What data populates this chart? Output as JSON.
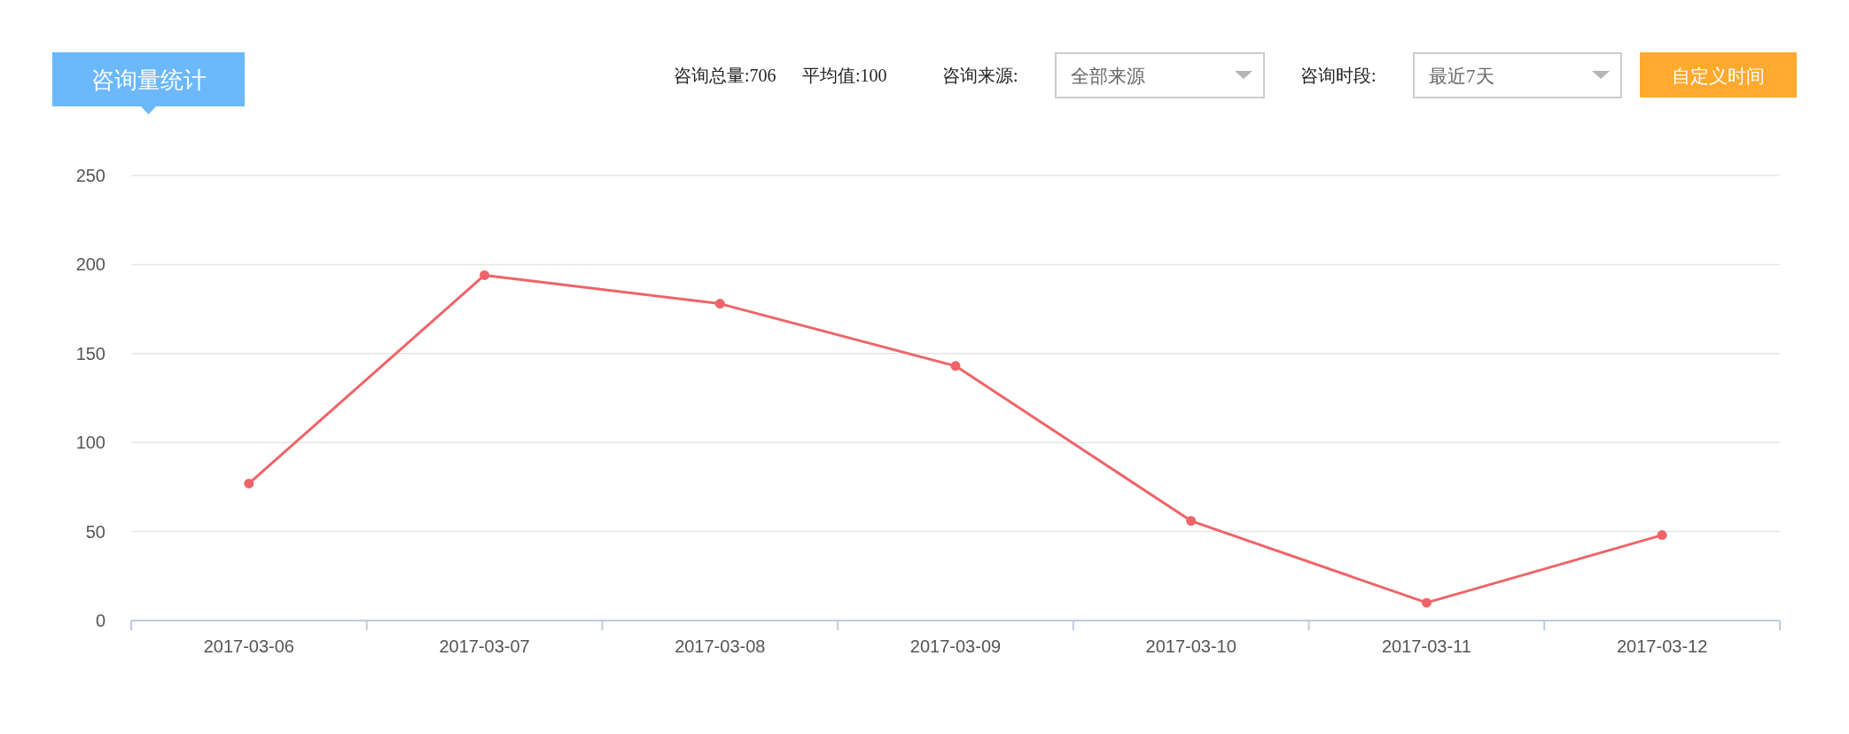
{
  "chart_data": {
    "type": "line",
    "title": "咨询量统计",
    "annotations": [
      "咨询总量:706",
      "平均值:100",
      "咨询来源:",
      "全部来源",
      "咨询时段:",
      "最近7天",
      "自定义时间"
    ],
    "categories": [
      "2017-03-06",
      "2017-03-07",
      "2017-03-08",
      "2017-03-09",
      "2017-03-10",
      "2017-03-11",
      "2017-03-12"
    ],
    "values": [
      77,
      194,
      178,
      143,
      56,
      10,
      48
    ],
    "color": "#ee6468",
    "marker": "circle",
    "line_style": "solid",
    "grid": "y",
    "ylim": [
      0,
      250
    ],
    "yticks": [
      0,
      50,
      100,
      150,
      200,
      250
    ]
  }
}
